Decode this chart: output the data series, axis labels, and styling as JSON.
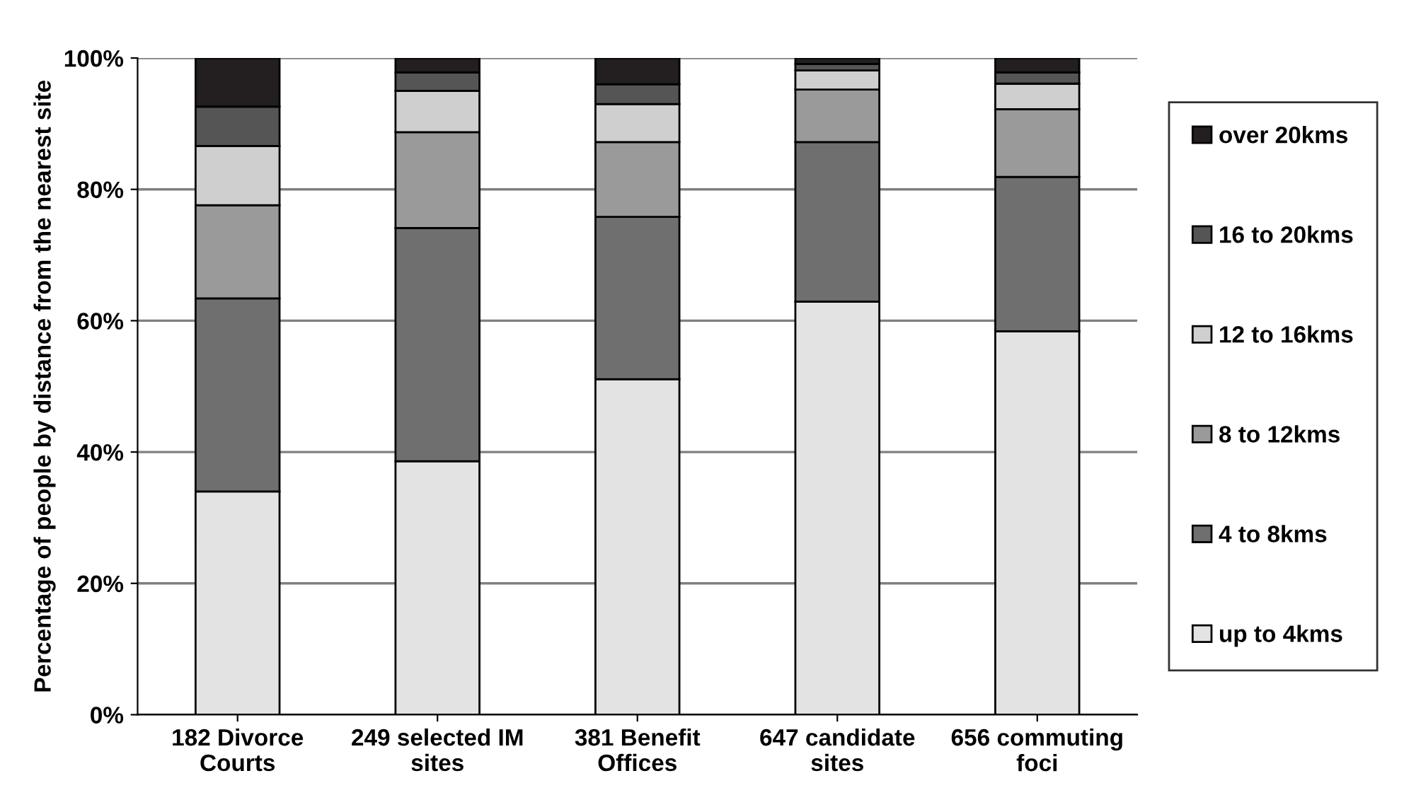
{
  "chart_data": {
    "type": "bar",
    "stacked": true,
    "ylabel": "Percentage of people by distance from the nearest site",
    "categories": [
      "182 Divorce\nCourts",
      "249 selected IM\nsites",
      "381 Benefit\nOffices",
      "647 candidate\nsites",
      "656 commuting\nfoci"
    ],
    "series": [
      {
        "name": "up to 4kms",
        "color": "#e3e3e3",
        "values": [
          34.0,
          38.6,
          51.1,
          62.9,
          58.4
        ]
      },
      {
        "name": "4 to 8kms",
        "color": "#6f6f6f",
        "values": [
          29.4,
          35.5,
          24.7,
          24.3,
          23.5
        ]
      },
      {
        "name": "8 to 12kms",
        "color": "#9a9a9a",
        "values": [
          14.2,
          14.6,
          11.4,
          8.0,
          10.3
        ]
      },
      {
        "name": "12 to 16kms",
        "color": "#cfcfcf",
        "values": [
          9.0,
          6.3,
          5.8,
          2.9,
          3.9
        ]
      },
      {
        "name": "16 to 20kms",
        "color": "#555555",
        "values": [
          6.0,
          2.8,
          3.0,
          1.0,
          1.7
        ]
      },
      {
        "name": "over 20kms",
        "color": "#231f20",
        "values": [
          7.4,
          2.2,
          4.0,
          0.9,
          2.2
        ]
      }
    ],
    "ylim": [
      0,
      100
    ],
    "yticks": [
      {
        "value": 0,
        "label": "0%"
      },
      {
        "value": 20,
        "label": "20%"
      },
      {
        "value": 40,
        "label": "40%"
      },
      {
        "value": 60,
        "label": "60%"
      },
      {
        "value": 80,
        "label": "80%"
      },
      {
        "value": 100,
        "label": "100%"
      }
    ],
    "grid": "y",
    "legend": "right"
  }
}
